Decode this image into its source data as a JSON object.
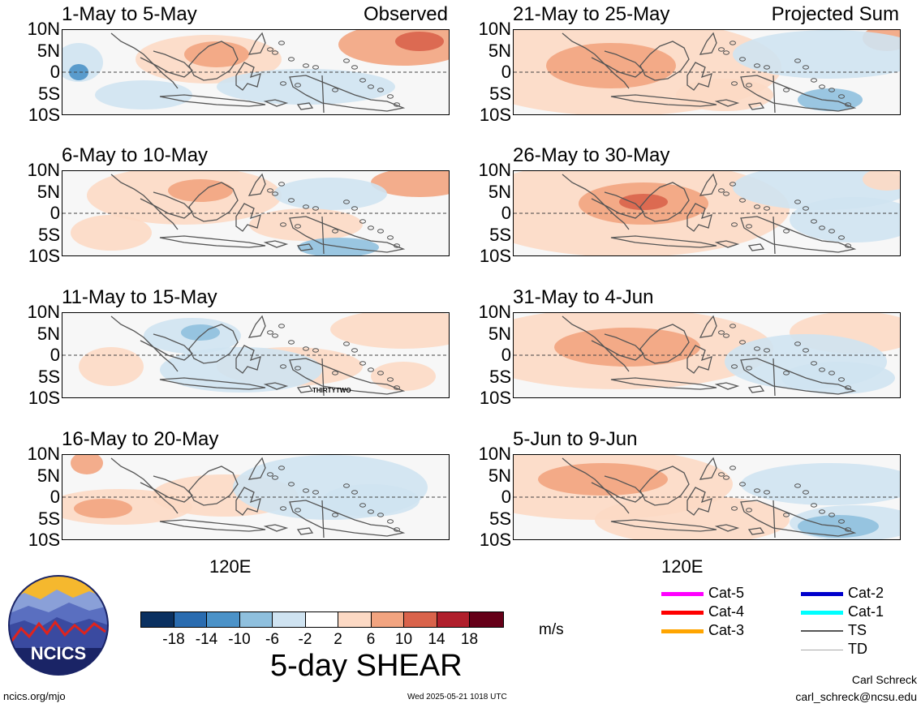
{
  "chart_data": {
    "type": "heatmap",
    "title": "5-day SHEAR",
    "units": "m/s",
    "panel_labels": {
      "observed": "Observed",
      "projected": "Projected Sum"
    },
    "lat_ticks": [
      "10N",
      "5N",
      "0",
      "5S",
      "10S"
    ],
    "lon_tick": "120E",
    "colorbar": {
      "ticks": [
        "-18",
        "-14",
        "-10",
        "-6",
        "-2",
        "2",
        "6",
        "10",
        "14",
        "18"
      ],
      "colors": [
        "#0a3060",
        "#2a6cb0",
        "#4b92c8",
        "#8fc0de",
        "#cfe3f1",
        "#ffffff",
        "#fcd9c4",
        "#f2a480",
        "#d9634b",
        "#b01f2c",
        "#650018"
      ]
    },
    "panels": [
      {
        "title": "1-May to 5-May",
        "tag": "Observed",
        "storm": ""
      },
      {
        "title": "6-May to 10-May",
        "tag": "",
        "storm": ""
      },
      {
        "title": "11-May to 15-May",
        "tag": "",
        "storm": "THIRTYTWO"
      },
      {
        "title": "16-May to 20-May",
        "tag": "",
        "storm": ""
      },
      {
        "title": "21-May to 25-May",
        "tag": "Projected Sum",
        "storm": ""
      },
      {
        "title": "26-May to 30-May",
        "tag": "",
        "storm": ""
      },
      {
        "title": "31-May to 4-Jun",
        "tag": "",
        "storm": ""
      },
      {
        "title": "5-Jun to 9-Jun",
        "tag": "",
        "storm": ""
      }
    ],
    "legend": [
      {
        "label": "Cat-5",
        "color": "#ff00ff"
      },
      {
        "label": "Cat-4",
        "color": "#ff0000"
      },
      {
        "label": "Cat-3",
        "color": "#ffa500"
      },
      {
        "label": "Cat-2",
        "color": "#0000cc"
      },
      {
        "label": "Cat-1",
        "color": "#00ffff"
      },
      {
        "label": "TS",
        "color": "#555555"
      },
      {
        "label": "TD",
        "color": "#aaaaaa"
      }
    ]
  },
  "logo": {
    "text": "NCICS"
  },
  "footer": {
    "url": "ncics.org/mjo",
    "timestamp": "Wed 2025-05-21 1018 UTC",
    "author": "Carl Schreck",
    "email": "carl_schreck@ncsu.edu"
  }
}
